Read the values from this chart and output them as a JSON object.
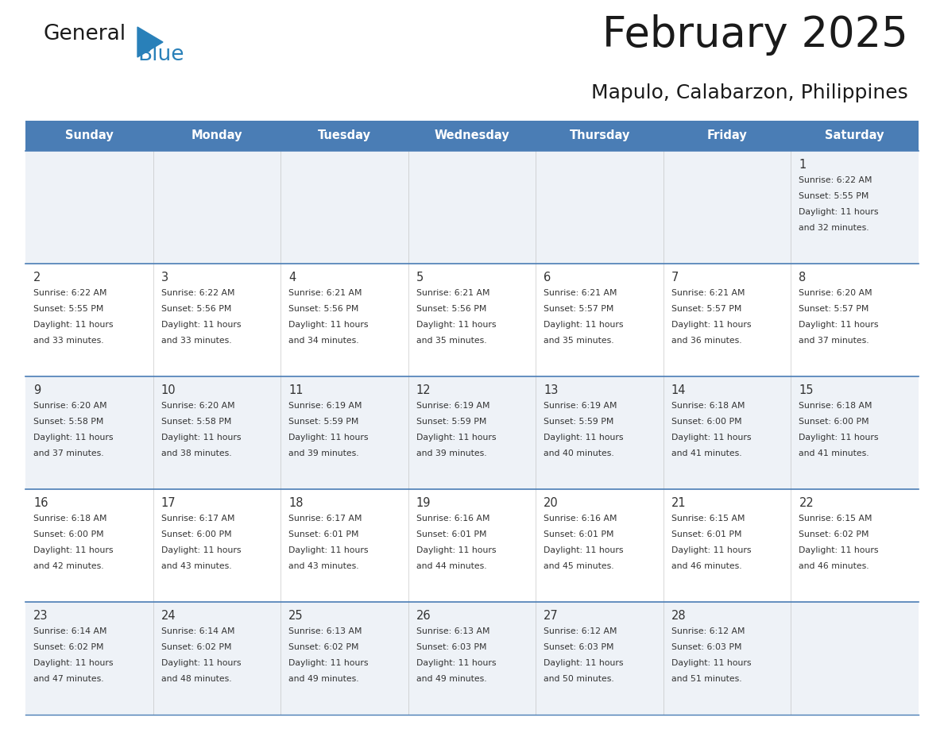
{
  "title": "February 2025",
  "subtitle": "Mapulo, Calabarzon, Philippines",
  "header_bg": "#4a7db5",
  "header_text_color": "#FFFFFF",
  "days_of_week": [
    "Sunday",
    "Monday",
    "Tuesday",
    "Wednesday",
    "Thursday",
    "Friday",
    "Saturday"
  ],
  "row_bg_even": "#eef2f7",
  "row_bg_odd": "#FFFFFF",
  "separator_color": "#4a7db5",
  "day_number_color": "#333333",
  "info_text_color": "#333333",
  "title_color": "#1a1a1a",
  "logo_general_color": "#1a1a1a",
  "logo_blue_color": "#2980B9",
  "logo_triangle_color": "#2980B9",
  "calendar_data": [
    [
      null,
      null,
      null,
      null,
      null,
      null,
      {
        "day": "1",
        "sunrise": "6:22 AM",
        "sunset": "5:55 PM",
        "daylight": "11 hours and 32 minutes."
      }
    ],
    [
      {
        "day": "2",
        "sunrise": "6:22 AM",
        "sunset": "5:55 PM",
        "daylight": "11 hours and 33 minutes."
      },
      {
        "day": "3",
        "sunrise": "6:22 AM",
        "sunset": "5:56 PM",
        "daylight": "11 hours and 33 minutes."
      },
      {
        "day": "4",
        "sunrise": "6:21 AM",
        "sunset": "5:56 PM",
        "daylight": "11 hours and 34 minutes."
      },
      {
        "day": "5",
        "sunrise": "6:21 AM",
        "sunset": "5:56 PM",
        "daylight": "11 hours and 35 minutes."
      },
      {
        "day": "6",
        "sunrise": "6:21 AM",
        "sunset": "5:57 PM",
        "daylight": "11 hours and 35 minutes."
      },
      {
        "day": "7",
        "sunrise": "6:21 AM",
        "sunset": "5:57 PM",
        "daylight": "11 hours and 36 minutes."
      },
      {
        "day": "8",
        "sunrise": "6:20 AM",
        "sunset": "5:57 PM",
        "daylight": "11 hours and 37 minutes."
      }
    ],
    [
      {
        "day": "9",
        "sunrise": "6:20 AM",
        "sunset": "5:58 PM",
        "daylight": "11 hours and 37 minutes."
      },
      {
        "day": "10",
        "sunrise": "6:20 AM",
        "sunset": "5:58 PM",
        "daylight": "11 hours and 38 minutes."
      },
      {
        "day": "11",
        "sunrise": "6:19 AM",
        "sunset": "5:59 PM",
        "daylight": "11 hours and 39 minutes."
      },
      {
        "day": "12",
        "sunrise": "6:19 AM",
        "sunset": "5:59 PM",
        "daylight": "11 hours and 39 minutes."
      },
      {
        "day": "13",
        "sunrise": "6:19 AM",
        "sunset": "5:59 PM",
        "daylight": "11 hours and 40 minutes."
      },
      {
        "day": "14",
        "sunrise": "6:18 AM",
        "sunset": "6:00 PM",
        "daylight": "11 hours and 41 minutes."
      },
      {
        "day": "15",
        "sunrise": "6:18 AM",
        "sunset": "6:00 PM",
        "daylight": "11 hours and 41 minutes."
      }
    ],
    [
      {
        "day": "16",
        "sunrise": "6:18 AM",
        "sunset": "6:00 PM",
        "daylight": "11 hours and 42 minutes."
      },
      {
        "day": "17",
        "sunrise": "6:17 AM",
        "sunset": "6:00 PM",
        "daylight": "11 hours and 43 minutes."
      },
      {
        "day": "18",
        "sunrise": "6:17 AM",
        "sunset": "6:01 PM",
        "daylight": "11 hours and 43 minutes."
      },
      {
        "day": "19",
        "sunrise": "6:16 AM",
        "sunset": "6:01 PM",
        "daylight": "11 hours and 44 minutes."
      },
      {
        "day": "20",
        "sunrise": "6:16 AM",
        "sunset": "6:01 PM",
        "daylight": "11 hours and 45 minutes."
      },
      {
        "day": "21",
        "sunrise": "6:15 AM",
        "sunset": "6:01 PM",
        "daylight": "11 hours and 46 minutes."
      },
      {
        "day": "22",
        "sunrise": "6:15 AM",
        "sunset": "6:02 PM",
        "daylight": "11 hours and 46 minutes."
      }
    ],
    [
      {
        "day": "23",
        "sunrise": "6:14 AM",
        "sunset": "6:02 PM",
        "daylight": "11 hours and 47 minutes."
      },
      {
        "day": "24",
        "sunrise": "6:14 AM",
        "sunset": "6:02 PM",
        "daylight": "11 hours and 48 minutes."
      },
      {
        "day": "25",
        "sunrise": "6:13 AM",
        "sunset": "6:02 PM",
        "daylight": "11 hours and 49 minutes."
      },
      {
        "day": "26",
        "sunrise": "6:13 AM",
        "sunset": "6:03 PM",
        "daylight": "11 hours and 49 minutes."
      },
      {
        "day": "27",
        "sunrise": "6:12 AM",
        "sunset": "6:03 PM",
        "daylight": "11 hours and 50 minutes."
      },
      {
        "day": "28",
        "sunrise": "6:12 AM",
        "sunset": "6:03 PM",
        "daylight": "11 hours and 51 minutes."
      },
      null
    ]
  ]
}
